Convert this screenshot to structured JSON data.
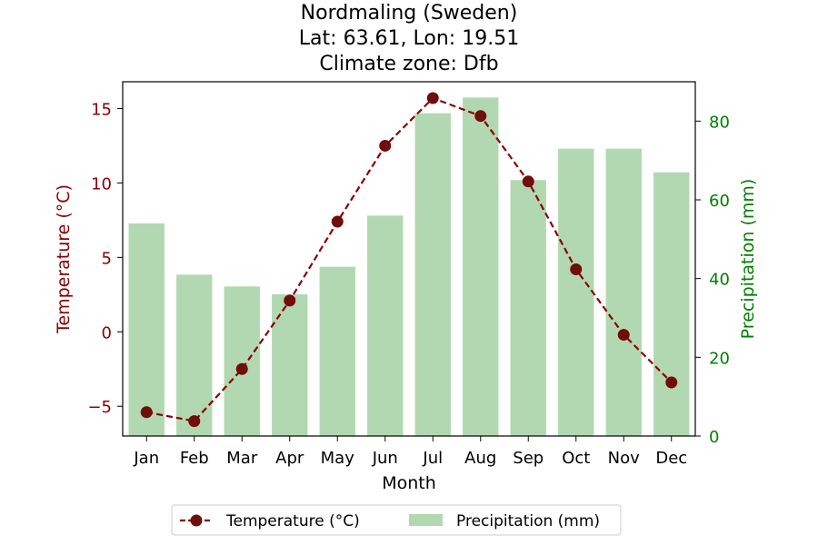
{
  "chart_data": {
    "type": "bar+line",
    "title_lines": [
      "Nordmaling (Sweden)",
      "Lat: 63.61, Lon: 19.51",
      "Climate zone: Dfb"
    ],
    "xlabel": "Month",
    "categories": [
      "Jan",
      "Feb",
      "Mar",
      "Apr",
      "May",
      "Jun",
      "Jul",
      "Aug",
      "Sep",
      "Oct",
      "Nov",
      "Dec"
    ],
    "temperature": {
      "name": "Temperature (°C)",
      "axis_label": "Temperature (°C)",
      "values": [
        -5.4,
        -6.0,
        -2.5,
        2.1,
        7.4,
        12.5,
        15.7,
        14.5,
        10.1,
        4.2,
        -0.2,
        -3.4
      ],
      "ylim": [
        -7.0,
        16.8
      ],
      "ticks": [
        -5,
        0,
        5,
        10,
        15
      ],
      "color": "#8b0000",
      "marker_color": "#6b0f0f"
    },
    "precipitation": {
      "name": "Precipitation (mm)",
      "axis_label": "Precipitation (mm)",
      "values": [
        54,
        41,
        38,
        36,
        43,
        56,
        82,
        86,
        65,
        73,
        73,
        67
      ],
      "ylim": [
        0,
        90
      ],
      "ticks": [
        0,
        20,
        40,
        60,
        80
      ],
      "color": "#b2d8b2",
      "axis_color": "#008000"
    },
    "legend": {
      "position": "bottom-center",
      "entries": [
        "Temperature (°C)",
        "Precipitation (mm)"
      ]
    }
  }
}
